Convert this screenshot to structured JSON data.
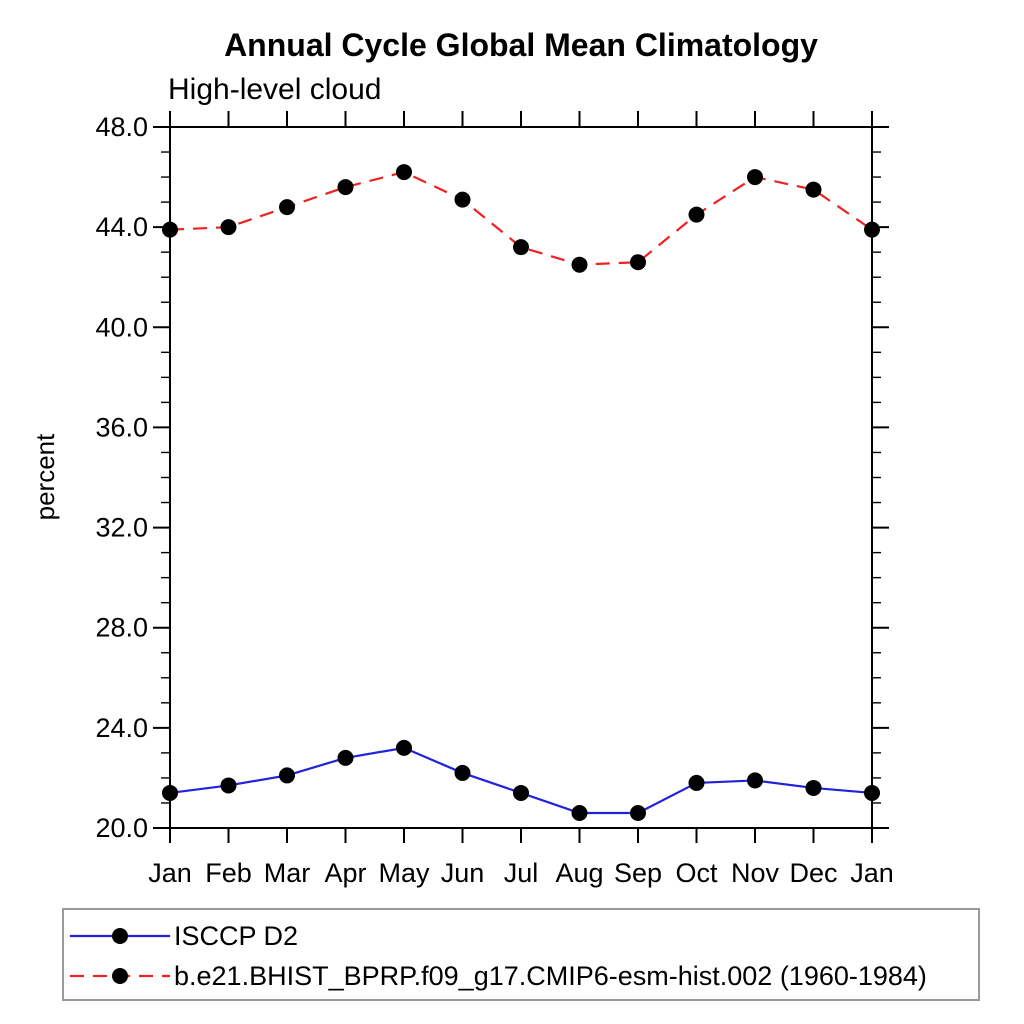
{
  "chart_data": {
    "type": "line",
    "title": "Annual Cycle Global Mean Climatology",
    "subtitle": "High-level cloud",
    "ylabel": "percent",
    "xlabel": "",
    "categories": [
      "Jan",
      "Feb",
      "Mar",
      "Apr",
      "May",
      "Jun",
      "Jul",
      "Aug",
      "Sep",
      "Oct",
      "Nov",
      "Dec",
      "Jan"
    ],
    "ylim": [
      20.0,
      48.0
    ],
    "ytick_major": 4.0,
    "ytick_minor": 1.0,
    "ytick_labels": [
      "20.0",
      "24.0",
      "28.0",
      "32.0",
      "36.0",
      "40.0",
      "44.0",
      "48.0"
    ],
    "grid": false,
    "legend_position": "bottom-left",
    "axis_color": "#000000",
    "series": [
      {
        "name": "ISCCP D2",
        "color": "#2222dd",
        "line_style": "solid",
        "marker": "filled-circle",
        "marker_color": "#000000",
        "values": [
          21.4,
          21.7,
          22.1,
          22.8,
          23.2,
          22.2,
          21.4,
          20.6,
          20.6,
          21.8,
          21.9,
          21.6,
          21.4
        ]
      },
      {
        "name": "b.e21.BHIST_BPRP.f09_g17.CMIP6-esm-hist.002 (1960-1984)",
        "color": "#ee2222",
        "line_style": "dashed",
        "marker": "filled-circle",
        "marker_color": "#000000",
        "values": [
          43.9,
          44.0,
          44.8,
          45.6,
          46.2,
          45.1,
          43.2,
          42.5,
          42.6,
          44.5,
          46.0,
          45.5,
          43.9
        ]
      }
    ]
  }
}
